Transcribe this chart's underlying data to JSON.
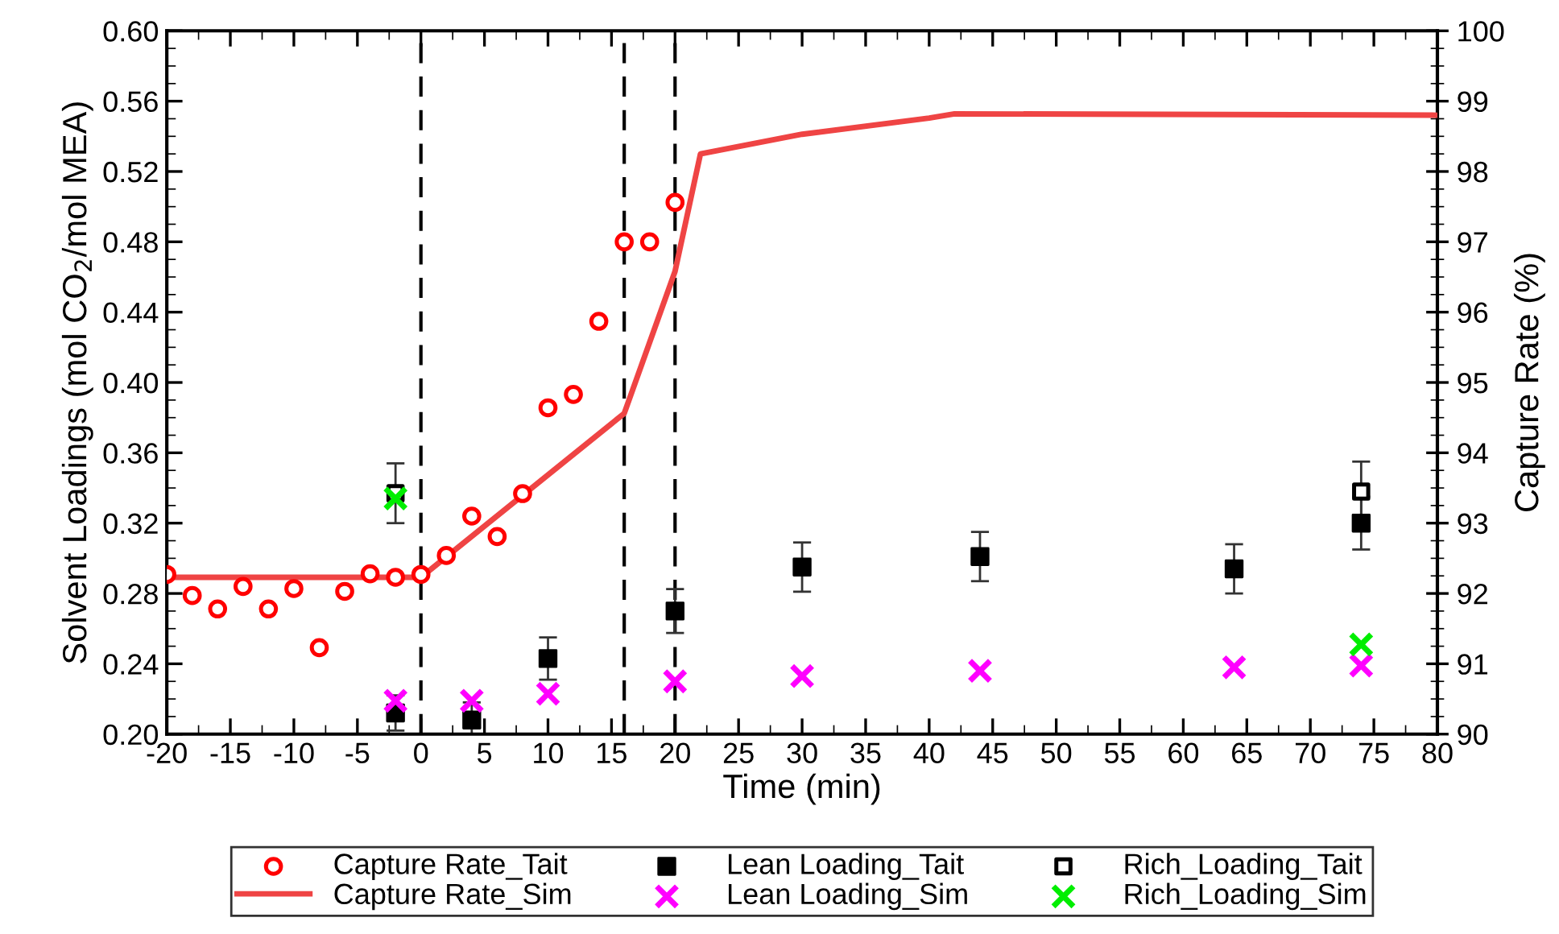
{
  "chart_data": {
    "type": "scatter",
    "xlabel": "Time (min)",
    "ylabel": "Solvent Loadings (mol CO$_{2}$/mol MEA)",
    "y2label": "Capture Rate (%)",
    "xlim": [
      -20,
      80
    ],
    "xticks": [
      -20,
      -15,
      -10,
      -5,
      0,
      5,
      10,
      15,
      20,
      25,
      30,
      35,
      40,
      45,
      50,
      55,
      60,
      65,
      70,
      75,
      80
    ],
    "ylim": [
      0.2,
      0.6
    ],
    "yticks": [
      {
        "value": 0.2,
        "label": "0.20"
      },
      0.24,
      0.28,
      0.32,
      0.36,
      {
        "value": 0.4,
        "label": "0.40"
      },
      0.44,
      0.48,
      0.52,
      0.56,
      {
        "value": 0.6,
        "label": "0.60"
      }
    ],
    "y2lim": [
      90,
      100
    ],
    "y2ticks": [
      90,
      91,
      92,
      93,
      94,
      95,
      96,
      97,
      98,
      99,
      100
    ],
    "legend": "bottom",
    "grid": false,
    "ref_lines": [
      {
        "axis": "x",
        "value": 0,
        "color": "#000000",
        "line_style": "dashed"
      },
      {
        "axis": "x",
        "value": 16,
        "color": "#000000",
        "line_style": "dashed"
      },
      {
        "axis": "x",
        "value": 20,
        "color": "#000000",
        "line_style": "dashed"
      }
    ],
    "series": [
      {
        "name": "Capture Rate_Tait",
        "axis": "y2",
        "color": "#ff0000",
        "marker": "circle",
        "x": [
          -20,
          -18,
          -16,
          -14,
          -12,
          -10,
          -8,
          -6,
          -4,
          -2,
          0,
          2,
          4,
          6,
          8,
          10,
          12,
          14,
          16,
          18,
          20
        ],
        "values": [
          92.27,
          91.97,
          91.78,
          92.1,
          91.78,
          92.07,
          91.23,
          92.03,
          92.28,
          92.23,
          92.27,
          92.54,
          93.1,
          92.81,
          93.42,
          94.64,
          94.83,
          95.87,
          97.0,
          97.0,
          97.56
        ]
      },
      {
        "name": "Capture Rate_Sim",
        "type": "line",
        "axis": "y2",
        "color": "#ef4444",
        "marker": "none",
        "line_style": "solid",
        "x": [
          -20,
          0,
          16,
          20,
          22,
          30,
          40,
          42,
          80
        ],
        "values": [
          92.23,
          92.23,
          94.56,
          96.58,
          98.25,
          98.53,
          98.76,
          98.82,
          98.8
        ]
      },
      {
        "name": "Lean Loading_Tait",
        "color": "#000000",
        "marker": "square",
        "x": [
          -2,
          4,
          10,
          20,
          30,
          44,
          64,
          74
        ],
        "values": [
          0.212,
          0.208,
          0.243,
          0.27,
          0.295,
          0.301,
          0.294,
          0.32
        ],
        "errors": [
          0.01,
          0.01,
          0.012,
          0.0125,
          0.014,
          0.014,
          0.014,
          0.015
        ]
      },
      {
        "name": "Lean Loading_Sim",
        "color": "#ff00ff",
        "marker": "cross",
        "x": [
          -2,
          4,
          10,
          20,
          30,
          44,
          64,
          74
        ],
        "values": [
          0.219,
          0.219,
          0.223,
          0.23,
          0.233,
          0.236,
          0.238,
          0.239
        ]
      },
      {
        "name": "Rich_Loading_Tait",
        "color": "#000000",
        "marker": "square",
        "x": [
          -2,
          74
        ],
        "values": [
          0.337,
          0.338
        ],
        "errors": [
          0.017,
          0.017
        ]
      },
      {
        "name": "Rich_Loading_Sim",
        "color": "#00ee00",
        "marker": "cross",
        "x": [
          -2,
          74
        ],
        "values": [
          0.334,
          0.251
        ]
      }
    ]
  }
}
